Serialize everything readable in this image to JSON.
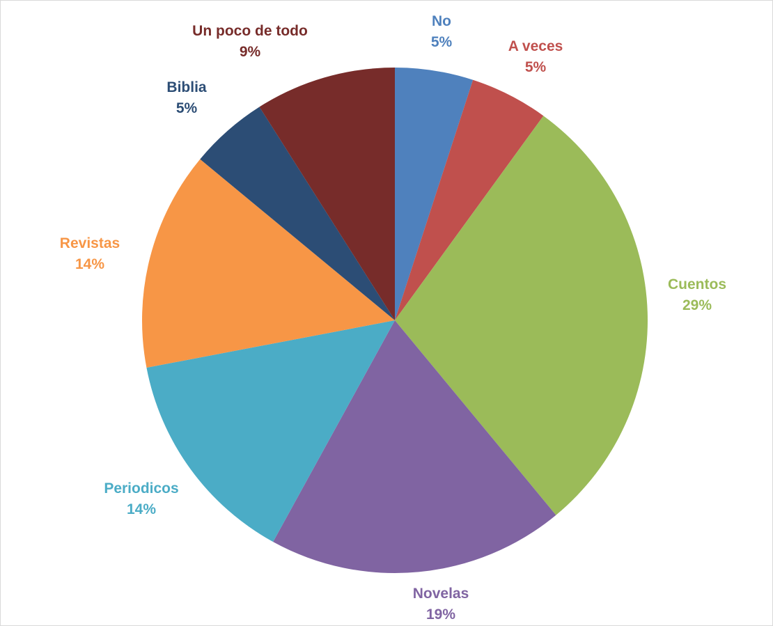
{
  "chart_data": {
    "type": "pie",
    "title": "",
    "slices": [
      {
        "label": "No",
        "value": 5,
        "value_label": "5%",
        "color": "#4f81bd"
      },
      {
        "label": "A veces",
        "value": 5,
        "value_label": "5%",
        "color": "#c0504d"
      },
      {
        "label": "Cuentos",
        "value": 29,
        "value_label": "29%",
        "color": "#9bbb59"
      },
      {
        "label": "Novelas",
        "value": 19,
        "value_label": "19%",
        "color": "#8064a2"
      },
      {
        "label": "Periodicos",
        "value": 14,
        "value_label": "14%",
        "color": "#4bacc6"
      },
      {
        "label": "Revistas",
        "value": 14,
        "value_label": "14%",
        "color": "#f79646"
      },
      {
        "label": "Biblia",
        "value": 5,
        "value_label": "5%",
        "color": "#2c4d75"
      },
      {
        "label": "Un poco de todo",
        "value": 9,
        "value_label": "9%",
        "color": "#772c2a"
      }
    ],
    "start_angle": "12 o'clock",
    "direction": "clockwise",
    "legend": "none",
    "data_labels": "outside, category name and percentage"
  }
}
